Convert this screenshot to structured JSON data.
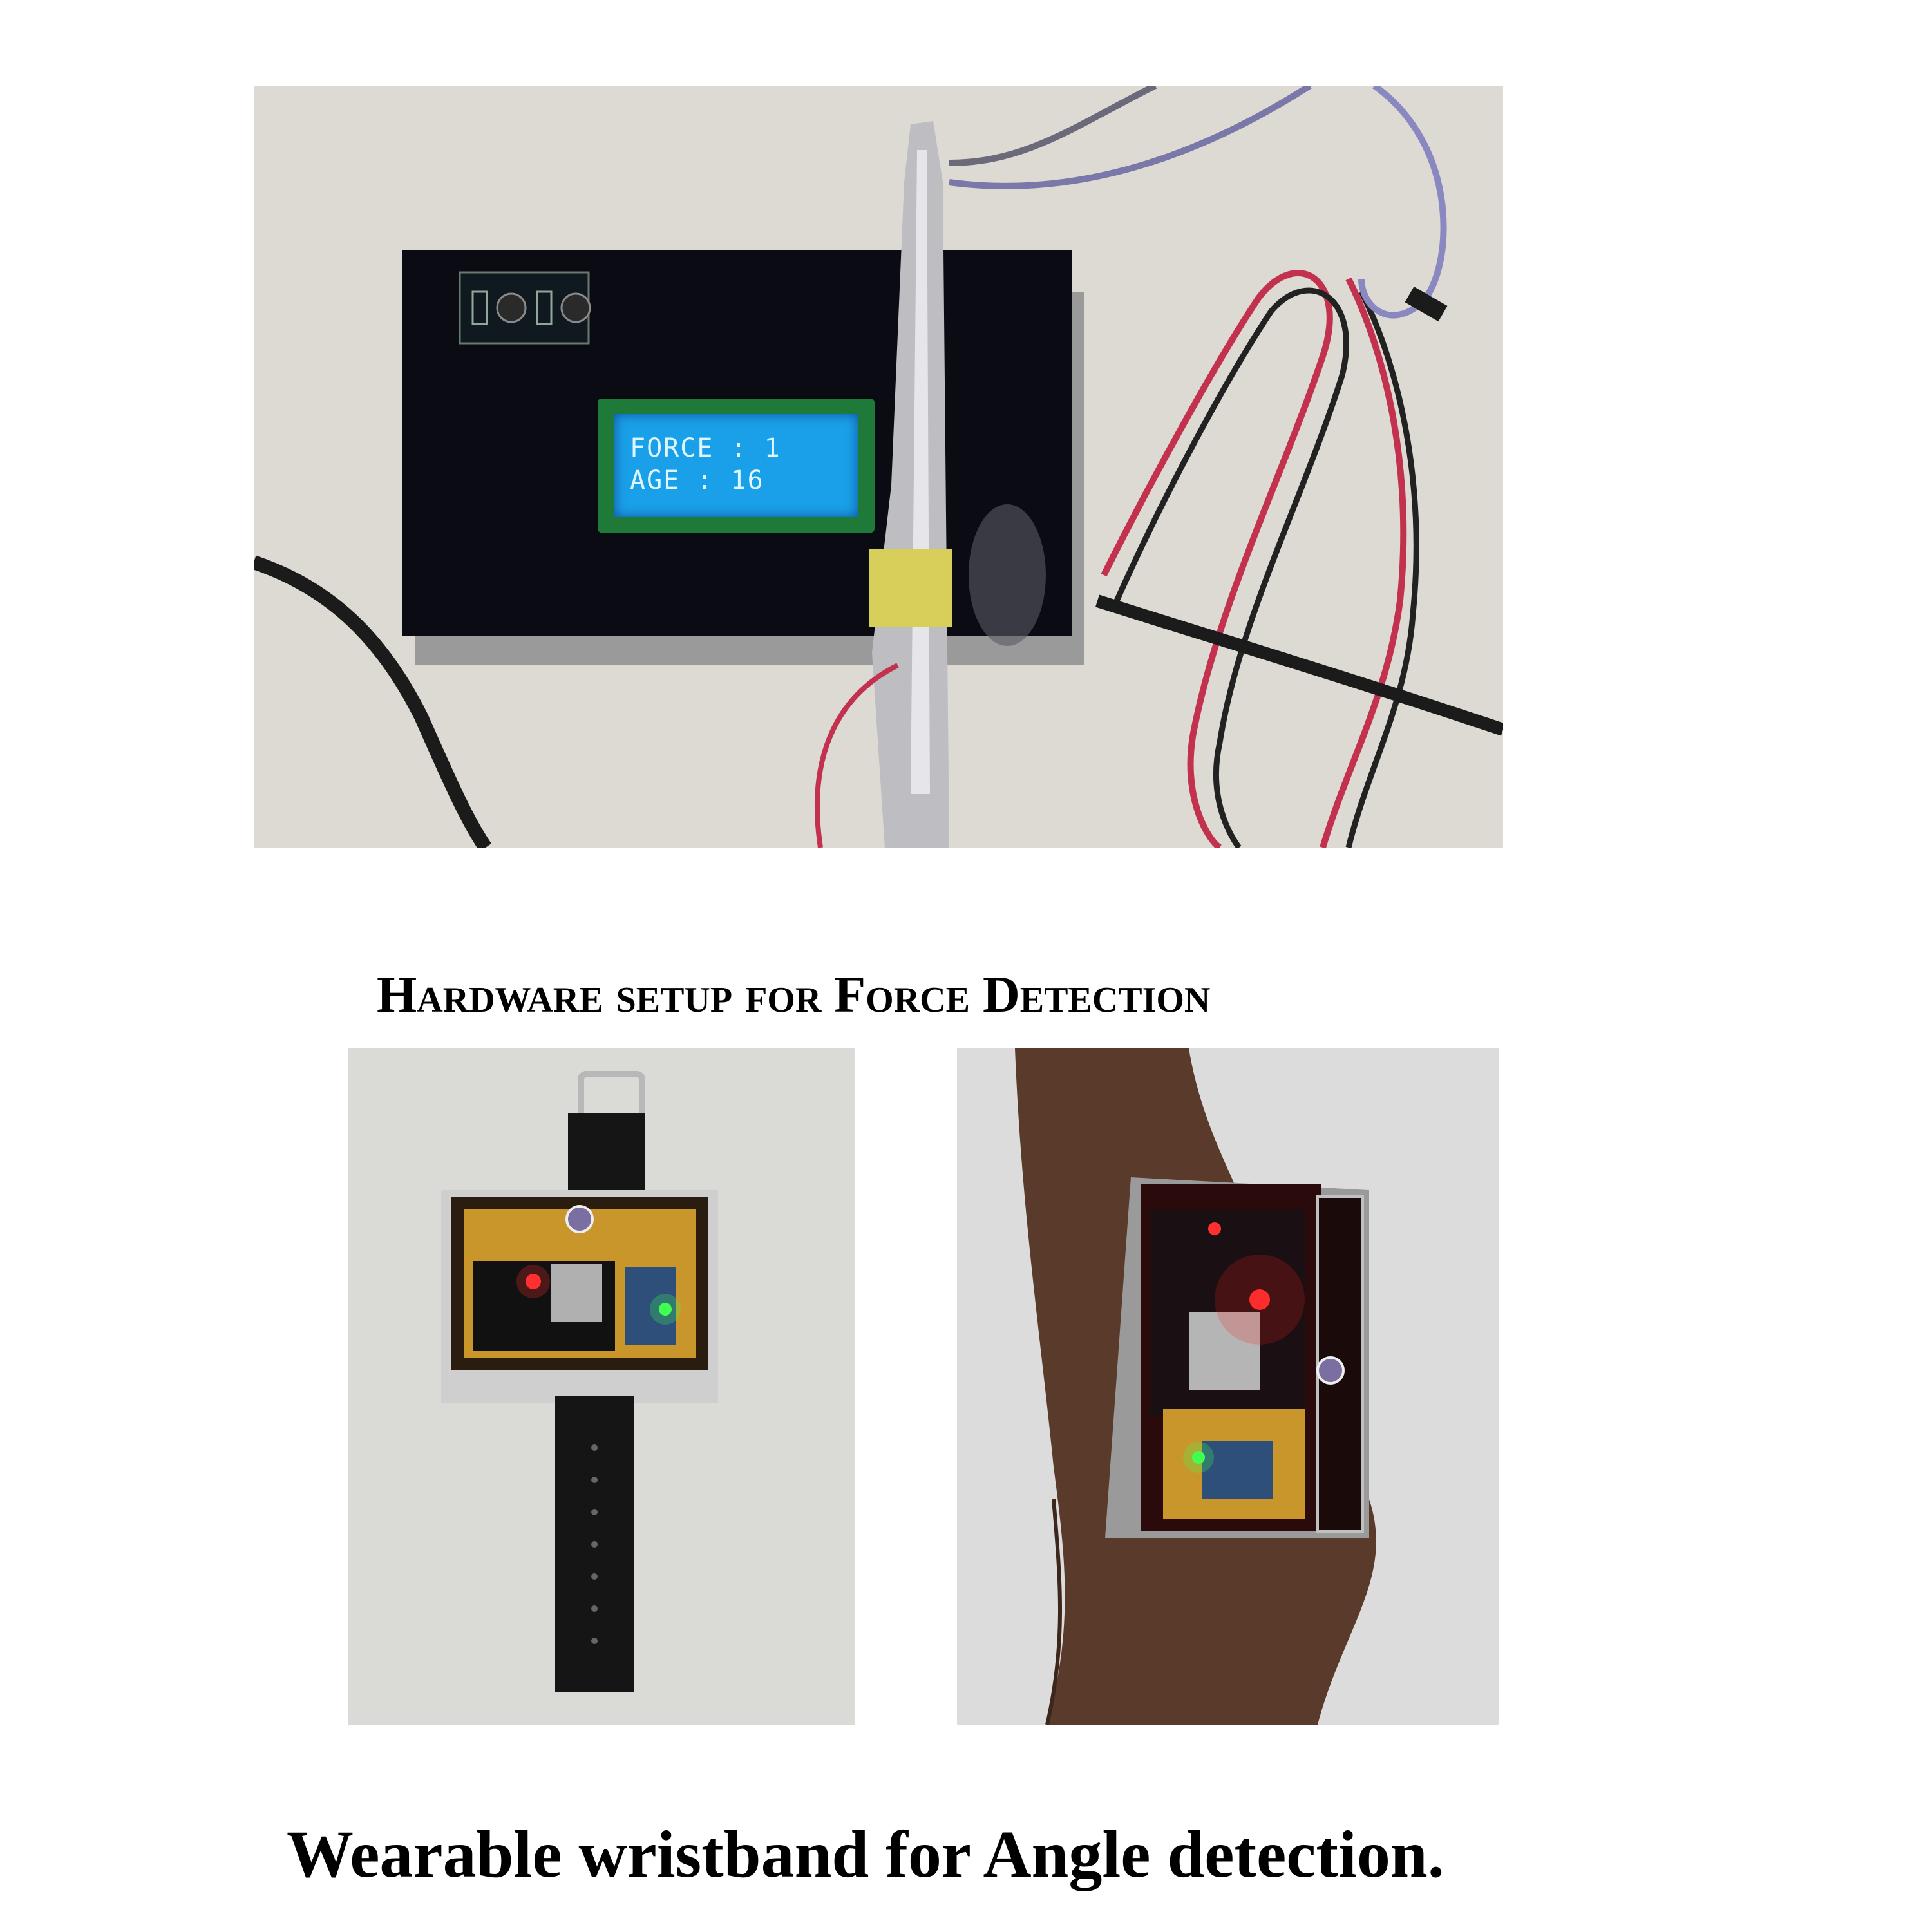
{
  "figure_top": {
    "lcd_display": {
      "line1": "FORCE : 1",
      "line2": "AGE : 16"
    },
    "caption": "Hardware setup for Force Detection"
  },
  "figure_bottom": {
    "caption": "Wearable wristband for Angle detection."
  },
  "colors": {
    "lcd_backlight": "#1aa0e8",
    "enclosure": "#0b0b14",
    "wire_red": "#c2324e",
    "wire_black": "#1b1b1b"
  }
}
